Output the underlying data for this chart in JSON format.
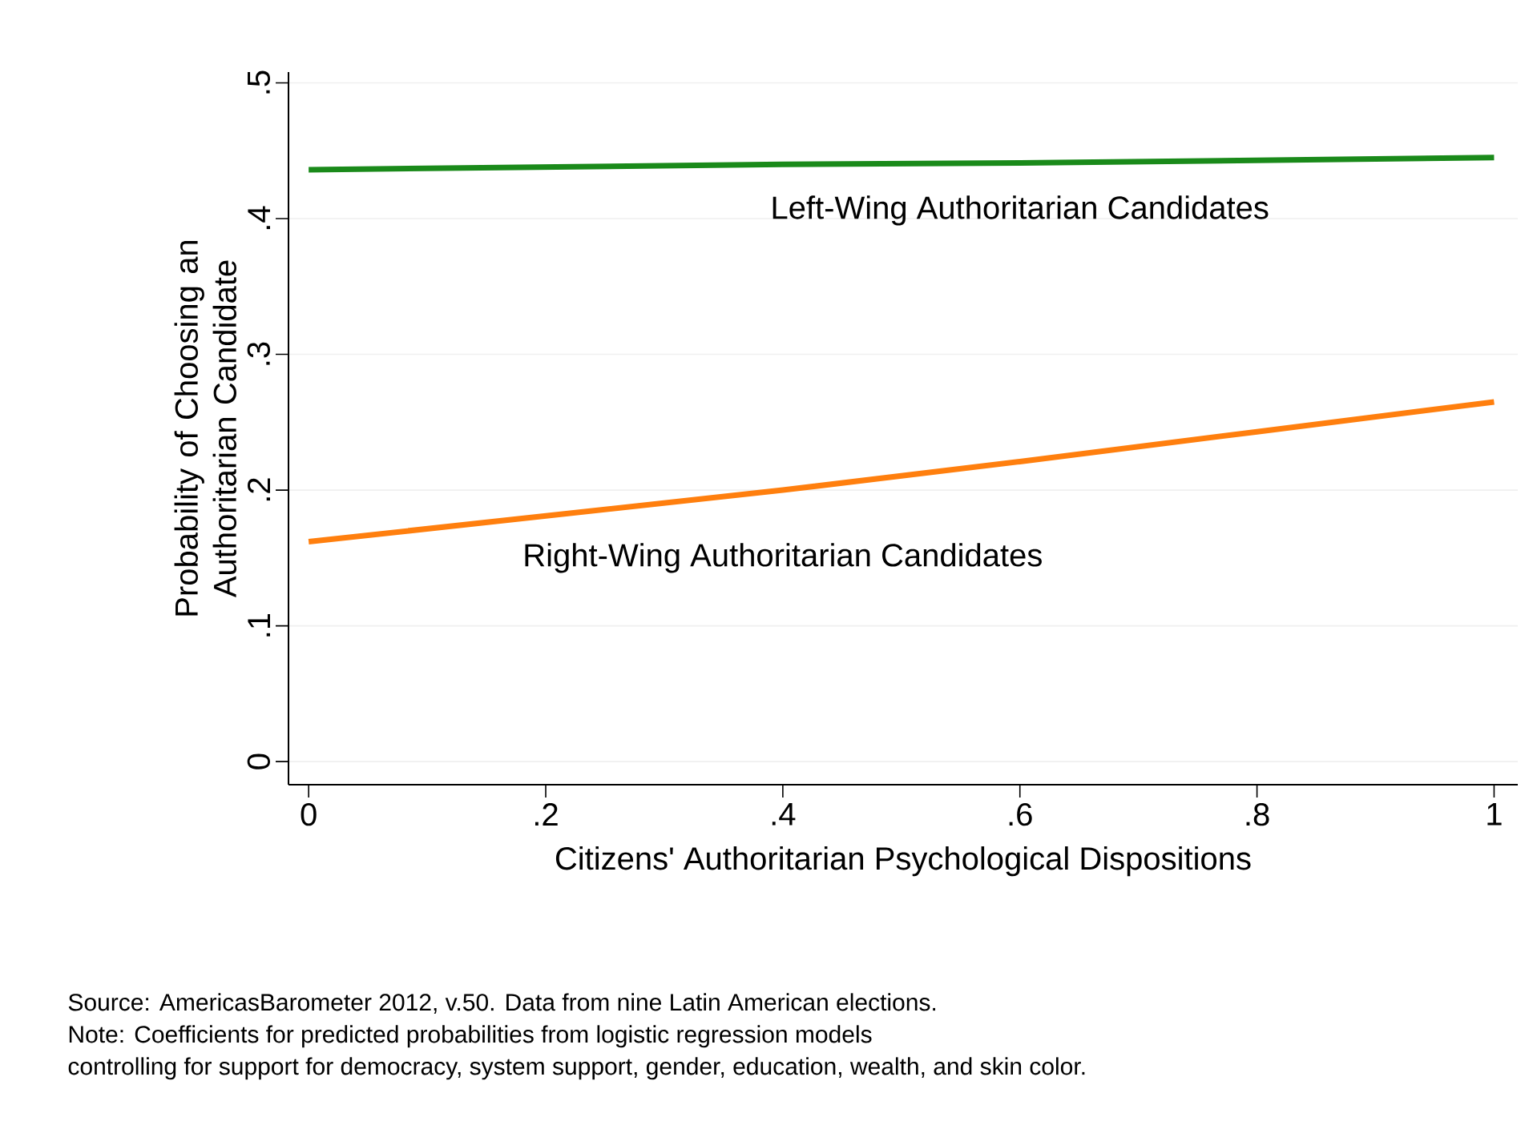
{
  "chart_data": {
    "type": "line",
    "xlabel": "Citizens' Authoritarian Psychological Dispositions",
    "ylabel": "Probability of Choosing an Authoritarian Candidate",
    "x": [
      0,
      0.2,
      0.4,
      0.6,
      0.8,
      1
    ],
    "series": [
      {
        "name": "Left-Wing Authoritarian Candidates",
        "color": "#1a8a1a",
        "values": [
          0.436,
          0.438,
          0.44,
          0.441,
          0.443,
          0.445
        ]
      },
      {
        "name": "Right-Wing Authoritarian Candidates",
        "color": "#ff7f0e",
        "values": [
          0.162,
          0.181,
          0.2,
          0.221,
          0.243,
          0.265
        ]
      }
    ],
    "xlim": [
      -0.017,
      1.02
    ],
    "ylim": [
      -0.017,
      0.508
    ],
    "xticks": [
      0,
      {
        "value": 0.2,
        "label": ".2"
      },
      {
        "value": 0.4,
        "label": ".4"
      },
      {
        "value": 0.6,
        "label": ".6"
      },
      {
        "value": 0.8,
        "label": ".8"
      },
      1
    ],
    "yticks": [
      0,
      {
        "value": 0.1,
        "label": ".1"
      },
      {
        "value": 0.2,
        "label": ".2"
      },
      {
        "value": 0.3,
        "label": ".3"
      },
      {
        "value": 0.4,
        "label": ".4"
      },
      {
        "value": 0.5,
        "label": ".5"
      }
    ],
    "grid": "y",
    "legend": false,
    "marker": "none",
    "line_style": "solid",
    "annotations": [
      "Source: AmericasBarometer 2012, v.50. Data from nine Latin American elections.",
      "Note: Coefficients for predicted probabilities from logistic regression models",
      "controlling for support for democracy, system support, gender, education, wealth, and skin color."
    ]
  }
}
